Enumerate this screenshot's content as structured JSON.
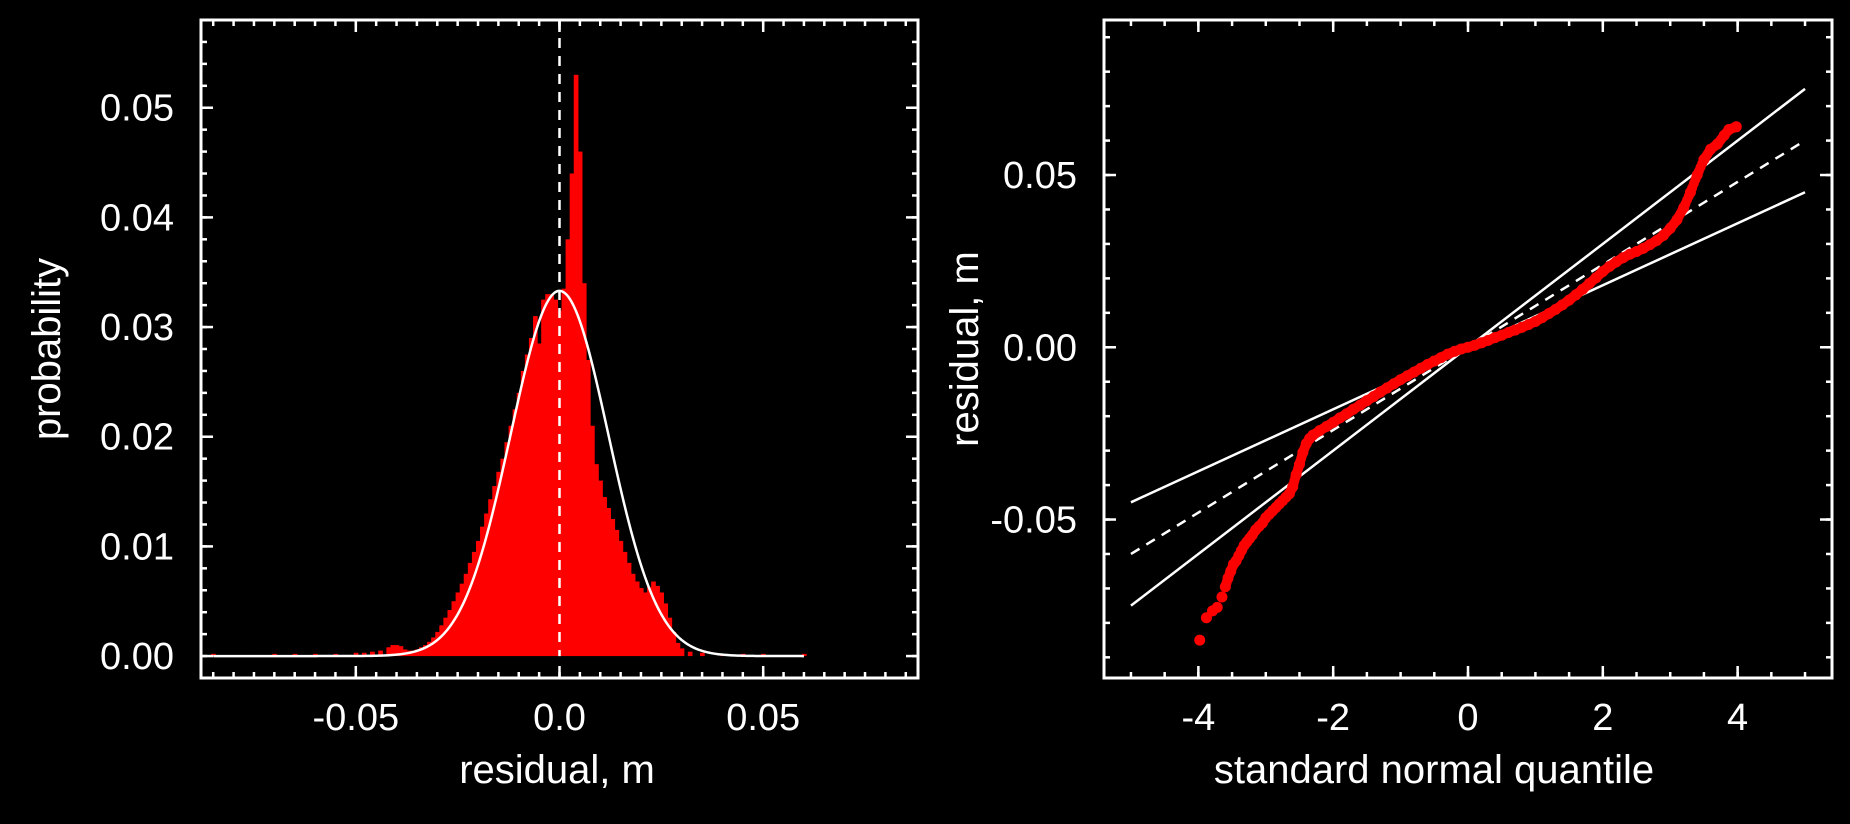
{
  "chart_data": [
    {
      "type": "bar",
      "panel": "histogram",
      "xlabel": "residual, m",
      "ylabel": "probability",
      "xlim": [
        -0.088,
        0.088
      ],
      "ylim": [
        -0.002,
        0.058
      ],
      "xticks": [
        -0.05,
        0.0,
        0.05
      ],
      "xtick_labels": [
        "-0.05",
        "0.0",
        "0.05"
      ],
      "yticks": [
        0.0,
        0.01,
        0.02,
        0.03,
        0.04,
        0.05
      ],
      "ytick_labels": [
        "0.00",
        "0.01",
        "0.02",
        "0.03",
        "0.04",
        "0.05"
      ],
      "bar_color": "#ff0000",
      "bin_width": 0.001,
      "bins": [
        {
          "x": -0.085,
          "y": 0.0002
        },
        {
          "x": -0.075,
          "y": 0.0001
        },
        {
          "x": -0.07,
          "y": 0.0002
        },
        {
          "x": -0.065,
          "y": 0.0002
        },
        {
          "x": -0.06,
          "y": 0.0002
        },
        {
          "x": -0.055,
          "y": 0.0002
        },
        {
          "x": -0.05,
          "y": 0.0003
        },
        {
          "x": -0.048,
          "y": 0.0003
        },
        {
          "x": -0.046,
          "y": 0.0004
        },
        {
          "x": -0.044,
          "y": 0.0005
        },
        {
          "x": -0.042,
          "y": 0.0008
        },
        {
          "x": -0.041,
          "y": 0.001
        },
        {
          "x": -0.04,
          "y": 0.001
        },
        {
          "x": -0.039,
          "y": 0.0009
        },
        {
          "x": -0.038,
          "y": 0.0006
        },
        {
          "x": -0.037,
          "y": 0.0005
        },
        {
          "x": -0.036,
          "y": 0.0005
        },
        {
          "x": -0.035,
          "y": 0.0006
        },
        {
          "x": -0.034,
          "y": 0.0008
        },
        {
          "x": -0.033,
          "y": 0.001
        },
        {
          "x": -0.032,
          "y": 0.0013
        },
        {
          "x": -0.031,
          "y": 0.0017
        },
        {
          "x": -0.03,
          "y": 0.0022
        },
        {
          "x": -0.029,
          "y": 0.0028
        },
        {
          "x": -0.028,
          "y": 0.0035
        },
        {
          "x": -0.027,
          "y": 0.0042
        },
        {
          "x": -0.026,
          "y": 0.005
        },
        {
          "x": -0.025,
          "y": 0.0058
        },
        {
          "x": -0.024,
          "y": 0.0066
        },
        {
          "x": -0.023,
          "y": 0.0075
        },
        {
          "x": -0.022,
          "y": 0.0085
        },
        {
          "x": -0.021,
          "y": 0.0095
        },
        {
          "x": -0.02,
          "y": 0.0105
        },
        {
          "x": -0.019,
          "y": 0.0118
        },
        {
          "x": -0.018,
          "y": 0.013
        },
        {
          "x": -0.017,
          "y": 0.0143
        },
        {
          "x": -0.016,
          "y": 0.0155
        },
        {
          "x": -0.015,
          "y": 0.0168
        },
        {
          "x": -0.014,
          "y": 0.018
        },
        {
          "x": -0.013,
          "y": 0.0195
        },
        {
          "x": -0.012,
          "y": 0.021
        },
        {
          "x": -0.011,
          "y": 0.0225
        },
        {
          "x": -0.01,
          "y": 0.024
        },
        {
          "x": -0.009,
          "y": 0.026
        },
        {
          "x": -0.008,
          "y": 0.0275
        },
        {
          "x": -0.007,
          "y": 0.029
        },
        {
          "x": -0.006,
          "y": 0.031
        },
        {
          "x": -0.005,
          "y": 0.0285
        },
        {
          "x": -0.004,
          "y": 0.0325
        },
        {
          "x": -0.003,
          "y": 0.033
        },
        {
          "x": -0.002,
          "y": 0.033
        },
        {
          "x": -0.001,
          "y": 0.0325
        },
        {
          "x": 0.0,
          "y": 0.0315
        },
        {
          "x": 0.001,
          "y": 0.0335
        },
        {
          "x": 0.002,
          "y": 0.038
        },
        {
          "x": 0.003,
          "y": 0.044
        },
        {
          "x": 0.004,
          "y": 0.053
        },
        {
          "x": 0.005,
          "y": 0.046
        },
        {
          "x": 0.006,
          "y": 0.034
        },
        {
          "x": 0.007,
          "y": 0.027
        },
        {
          "x": 0.008,
          "y": 0.021
        },
        {
          "x": 0.009,
          "y": 0.0175
        },
        {
          "x": 0.01,
          "y": 0.016
        },
        {
          "x": 0.011,
          "y": 0.0145
        },
        {
          "x": 0.012,
          "y": 0.0135
        },
        {
          "x": 0.013,
          "y": 0.0125
        },
        {
          "x": 0.014,
          "y": 0.0115
        },
        {
          "x": 0.015,
          "y": 0.0105
        },
        {
          "x": 0.016,
          "y": 0.0095
        },
        {
          "x": 0.017,
          "y": 0.0085
        },
        {
          "x": 0.018,
          "y": 0.0075
        },
        {
          "x": 0.019,
          "y": 0.0068
        },
        {
          "x": 0.02,
          "y": 0.0062
        },
        {
          "x": 0.021,
          "y": 0.0058
        },
        {
          "x": 0.022,
          "y": 0.0063
        },
        {
          "x": 0.023,
          "y": 0.0068
        },
        {
          "x": 0.024,
          "y": 0.0064
        },
        {
          "x": 0.025,
          "y": 0.0058
        },
        {
          "x": 0.026,
          "y": 0.0048
        },
        {
          "x": 0.027,
          "y": 0.0035
        },
        {
          "x": 0.028,
          "y": 0.0022
        },
        {
          "x": 0.029,
          "y": 0.0012
        },
        {
          "x": 0.03,
          "y": 0.0007
        },
        {
          "x": 0.032,
          "y": 0.0004
        },
        {
          "x": 0.035,
          "y": 0.0003
        },
        {
          "x": 0.04,
          "y": 0.0002
        },
        {
          "x": 0.045,
          "y": 0.0002
        },
        {
          "x": 0.05,
          "y": 0.0002
        },
        {
          "x": 0.055,
          "y": 0.0001
        },
        {
          "x": 0.06,
          "y": 0.0002
        }
      ],
      "fit_curve": {
        "type": "gaussian",
        "mean": 0.0,
        "sd": 0.012,
        "peak": 0.0333,
        "color": "#ffffff"
      },
      "reference_line": {
        "x": 0.0,
        "style": "dashed",
        "color": "#ffffff"
      }
    },
    {
      "type": "scatter",
      "panel": "qq-plot",
      "xlabel": "standard normal quantile",
      "ylabel": "residual, m",
      "xlim": [
        -5.4,
        5.4
      ],
      "ylim": [
        -0.096,
        0.095
      ],
      "xticks": [
        -4,
        -2,
        0,
        2,
        4
      ],
      "xtick_labels": [
        "-4",
        "-2",
        "0",
        "2",
        "4"
      ],
      "yticks": [
        -0.05,
        0.0,
        0.05
      ],
      "ytick_labels": [
        "-0.05",
        "0.00",
        "0.05"
      ],
      "marker_color": "#ff0000",
      "points": [
        [
          -3.98,
          -0.085
        ],
        [
          -3.88,
          -0.0785
        ],
        [
          -3.79,
          -0.0765
        ],
        [
          -3.72,
          -0.0755
        ],
        [
          -3.65,
          -0.0725
        ],
        [
          -3.6,
          -0.0695
        ],
        [
          -3.56,
          -0.067
        ],
        [
          -3.52,
          -0.065
        ],
        [
          -3.48,
          -0.063
        ],
        [
          -3.44,
          -0.062
        ],
        [
          -3.4,
          -0.0605
        ],
        [
          -3.36,
          -0.059
        ],
        [
          -3.32,
          -0.0575
        ],
        [
          -3.28,
          -0.0565
        ],
        [
          -3.24,
          -0.0555
        ],
        [
          -3.2,
          -0.0545
        ],
        [
          -3.15,
          -0.053
        ],
        [
          -3.1,
          -0.052
        ],
        [
          -3.05,
          -0.051
        ],
        [
          -3.0,
          -0.0495
        ],
        [
          -2.95,
          -0.0485
        ],
        [
          -2.9,
          -0.0475
        ],
        [
          -2.85,
          -0.0465
        ],
        [
          -2.8,
          -0.0455
        ],
        [
          -2.75,
          -0.0445
        ],
        [
          -2.7,
          -0.0435
        ],
        [
          -2.65,
          -0.0425
        ],
        [
          -2.6,
          -0.0405
        ],
        [
          -2.55,
          -0.037
        ],
        [
          -2.5,
          -0.034
        ],
        [
          -2.45,
          -0.0305
        ],
        [
          -2.4,
          -0.028
        ],
        [
          -2.35,
          -0.0265
        ],
        [
          -2.3,
          -0.0255
        ],
        [
          -2.2,
          -0.0242
        ],
        [
          -2.1,
          -0.023
        ],
        [
          -2.0,
          -0.0218
        ],
        [
          -1.9,
          -0.0205
        ],
        [
          -1.8,
          -0.0193
        ],
        [
          -1.7,
          -0.018
        ],
        [
          -1.6,
          -0.0168
        ],
        [
          -1.5,
          -0.0155
        ],
        [
          -1.4,
          -0.0143
        ],
        [
          -1.3,
          -0.013
        ],
        [
          -1.2,
          -0.0118
        ],
        [
          -1.1,
          -0.0106
        ],
        [
          -1.0,
          -0.0094
        ],
        [
          -0.9,
          -0.0083
        ],
        [
          -0.8,
          -0.0072
        ],
        [
          -0.7,
          -0.0061
        ],
        [
          -0.6,
          -0.005
        ],
        [
          -0.5,
          -0.004
        ],
        [
          -0.4,
          -0.003
        ],
        [
          -0.3,
          -0.002
        ],
        [
          -0.2,
          -0.0012
        ],
        [
          -0.1,
          -0.0005
        ],
        [
          0.0,
          0.0
        ],
        [
          0.1,
          0.0006
        ],
        [
          0.2,
          0.0013
        ],
        [
          0.3,
          0.002
        ],
        [
          0.4,
          0.0028
        ],
        [
          0.5,
          0.0035
        ],
        [
          0.6,
          0.0043
        ],
        [
          0.7,
          0.005
        ],
        [
          0.8,
          0.0058
        ],
        [
          0.9,
          0.0066
        ],
        [
          1.0,
          0.0075
        ],
        [
          1.1,
          0.0086
        ],
        [
          1.2,
          0.0098
        ],
        [
          1.3,
          0.011
        ],
        [
          1.4,
          0.0123
        ],
        [
          1.5,
          0.0137
        ],
        [
          1.6,
          0.0152
        ],
        [
          1.7,
          0.0168
        ],
        [
          1.8,
          0.0185
        ],
        [
          1.9,
          0.0202
        ],
        [
          2.0,
          0.022
        ],
        [
          2.1,
          0.0235
        ],
        [
          2.2,
          0.0248
        ],
        [
          2.3,
          0.026
        ],
        [
          2.4,
          0.027
        ],
        [
          2.5,
          0.0278
        ],
        [
          2.6,
          0.0287
        ],
        [
          2.7,
          0.0298
        ],
        [
          2.8,
          0.031
        ],
        [
          2.9,
          0.0325
        ],
        [
          3.0,
          0.0345
        ],
        [
          3.1,
          0.037
        ],
        [
          3.2,
          0.0405
        ],
        [
          3.3,
          0.045
        ],
        [
          3.4,
          0.05
        ],
        [
          3.5,
          0.0545
        ],
        [
          3.6,
          0.0575
        ],
        [
          3.7,
          0.059
        ],
        [
          3.8,
          0.0615
        ],
        [
          3.87,
          0.0632
        ],
        [
          3.98,
          0.064
        ]
      ],
      "reference_lines": [
        {
          "style": "solid",
          "slope": 0.015,
          "color": "#ffffff"
        },
        {
          "style": "dashed",
          "slope": 0.012,
          "color": "#ffffff"
        },
        {
          "style": "solid",
          "slope": 0.009,
          "color": "#ffffff"
        }
      ]
    }
  ]
}
